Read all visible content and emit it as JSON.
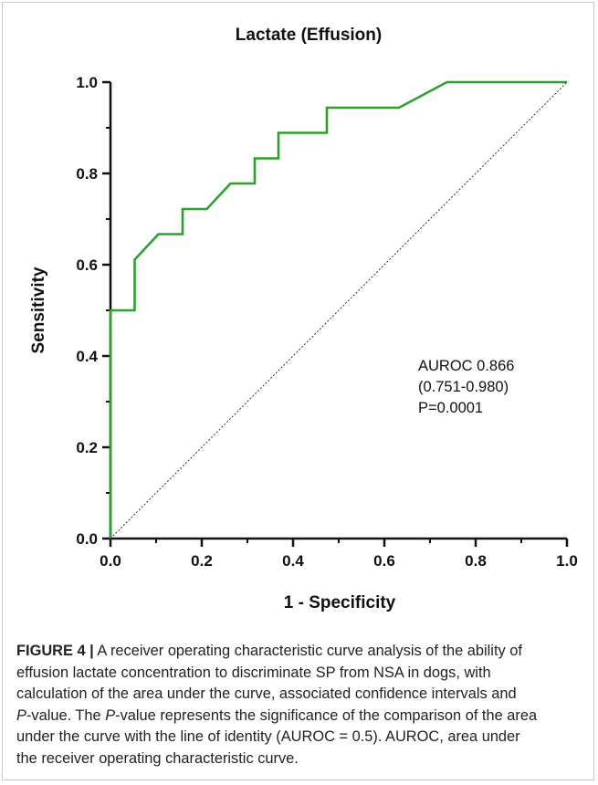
{
  "chart_data": {
    "type": "line",
    "title": "Lactate (Effusion)",
    "xlabel": "1 - Specificity",
    "ylabel": "Sensitivity",
    "xlim": [
      0,
      1
    ],
    "ylim": [
      0,
      1
    ],
    "x_ticks": [
      "0.0",
      "0.2",
      "0.4",
      "0.6",
      "0.8",
      "1.0"
    ],
    "y_ticks": [
      "0.0",
      "0.2",
      "0.4",
      "0.6",
      "0.8",
      "1.0"
    ],
    "grid": false,
    "series": [
      {
        "color": "#2ca02c",
        "x": [
          0,
          0,
          0.053,
          0.053,
          0.105,
          0.158,
          0.158,
          0.211,
          0.263,
          0.316,
          0.316,
          0.368,
          0.368,
          0.474,
          0.474,
          0.632,
          0.737,
          1.0
        ],
        "y": [
          0,
          0.5,
          0.5,
          0.611,
          0.667,
          0.667,
          0.722,
          0.722,
          0.778,
          0.778,
          0.833,
          0.833,
          0.889,
          0.889,
          0.944,
          0.944,
          1.0,
          1.0
        ]
      },
      {
        "color": "#333333",
        "style": "dotted",
        "x": [
          0,
          1
        ],
        "y": [
          0,
          1
        ]
      }
    ],
    "annotations": [
      "AUROC 0.866",
      "(0.751-0.980)",
      "P=0.0001"
    ]
  },
  "caption": {
    "label": "FIGURE 4 |",
    "line1": " A receiver operating characteristic curve analysis of the ability of",
    "line2": "effusion lactate concentration to discriminate SP from NSA in dogs, with",
    "line3": "calculation of the area under the curve, associated confidence intervals and",
    "p_italic": "P",
    "line4_rest": "-value. The ",
    "p_italic_2": "P",
    "line4_end": "-value represents the significance of the comparison of the area",
    "line5": "under the curve with the line of identity (AUROC = 0.5). AUROC, area under",
    "line6": "the receiver operating characteristic curve."
  }
}
